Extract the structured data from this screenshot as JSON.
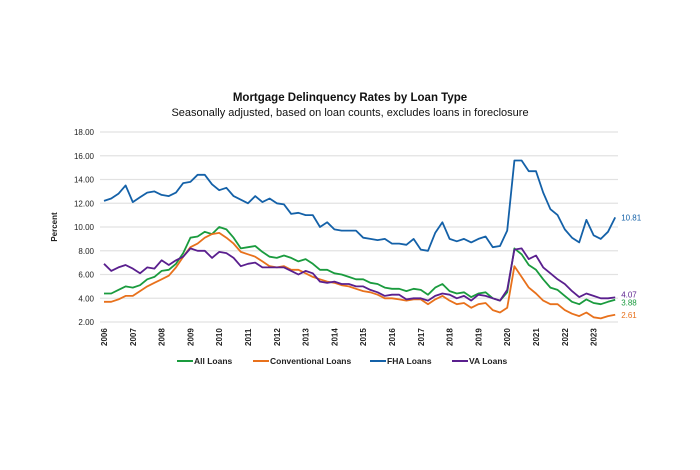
{
  "chart_data": {
    "type": "line",
    "title": "Mortgage Delinquency Rates by Loan Type",
    "subtitle": "Seasonally adjusted, based on loan counts, excludes loans in foreclosure",
    "xlabel": "",
    "ylabel": "Percent",
    "ylim": [
      2,
      18
    ],
    "yticks": [
      "2.00",
      "4.00",
      "6.00",
      "8.00",
      "10.00",
      "12.00",
      "14.00",
      "16.00",
      "18.00"
    ],
    "xticks": [
      "2006",
      "2007",
      "2008",
      "2009",
      "2010",
      "2011",
      "2012",
      "2013",
      "2014",
      "2015",
      "2016",
      "2017",
      "2018",
      "2019",
      "2020",
      "2021",
      "2022",
      "2023"
    ],
    "x_frequency": "quarterly, 2006 Q1 - 2023 Q4",
    "grid": true,
    "legend_position": "bottom",
    "series": [
      {
        "name": "All Loans",
        "color": "#1a9b3e",
        "end_label": "3.88",
        "values": [
          4.4,
          4.4,
          4.7,
          5.0,
          4.9,
          5.1,
          5.6,
          5.8,
          6.3,
          6.4,
          6.9,
          7.8,
          9.1,
          9.2,
          9.6,
          9.4,
          10.0,
          9.8,
          9.1,
          8.2,
          8.3,
          8.4,
          7.9,
          7.5,
          7.4,
          7.6,
          7.4,
          7.1,
          7.3,
          6.9,
          6.4,
          6.4,
          6.1,
          6.0,
          5.8,
          5.6,
          5.6,
          5.3,
          5.2,
          4.9,
          4.8,
          4.8,
          4.6,
          4.8,
          4.7,
          4.3,
          4.9,
          5.2,
          4.6,
          4.4,
          4.5,
          4.1,
          4.4,
          4.5,
          4.0,
          3.8,
          4.5,
          8.2,
          7.7,
          6.8,
          6.4,
          5.6,
          4.9,
          4.7,
          4.2,
          3.7,
          3.5,
          3.9,
          3.6,
          3.5,
          3.7,
          3.88
        ]
      },
      {
        "name": "Conventional Loans",
        "color": "#e8711c",
        "end_label": "2.61",
        "values": [
          3.7,
          3.7,
          3.9,
          4.2,
          4.2,
          4.6,
          5.0,
          5.3,
          5.6,
          5.9,
          6.6,
          7.5,
          8.3,
          8.6,
          9.1,
          9.4,
          9.5,
          9.1,
          8.6,
          7.9,
          7.7,
          7.5,
          7.1,
          6.7,
          6.6,
          6.7,
          6.4,
          6.4,
          6.1,
          5.8,
          5.6,
          5.4,
          5.3,
          5.1,
          5.0,
          4.8,
          4.6,
          4.5,
          4.3,
          4.0,
          4.0,
          3.9,
          3.8,
          3.9,
          3.9,
          3.5,
          3.9,
          4.2,
          3.8,
          3.5,
          3.6,
          3.2,
          3.5,
          3.6,
          3.0,
          2.8,
          3.2,
          6.7,
          5.8,
          4.9,
          4.4,
          3.8,
          3.5,
          3.5,
          3.0,
          2.7,
          2.5,
          2.8,
          2.4,
          2.3,
          2.5,
          2.61
        ]
      },
      {
        "name": "FHA Loans",
        "color": "#1461a8",
        "end_label": "10.81",
        "values": [
          12.2,
          12.4,
          12.8,
          13.5,
          12.1,
          12.5,
          12.9,
          13.0,
          12.7,
          12.6,
          12.9,
          13.7,
          13.8,
          14.4,
          14.4,
          13.6,
          13.1,
          13.3,
          12.6,
          12.3,
          12.0,
          12.6,
          12.1,
          12.4,
          12.0,
          11.9,
          11.1,
          11.2,
          11.0,
          11.0,
          10.0,
          10.4,
          9.8,
          9.7,
          9.7,
          9.7,
          9.1,
          9.0,
          8.9,
          9.0,
          8.6,
          8.6,
          8.5,
          9.0,
          8.1,
          8.0,
          9.5,
          10.4,
          9.0,
          8.8,
          9.0,
          8.7,
          9.0,
          9.2,
          8.3,
          8.4,
          9.7,
          15.6,
          15.6,
          14.7,
          14.7,
          12.9,
          11.5,
          11.0,
          9.8,
          9.1,
          8.7,
          10.6,
          9.3,
          9.0,
          9.6,
          10.81
        ]
      },
      {
        "name": "VA Loans",
        "color": "#5a1f8e",
        "end_label": "4.07",
        "values": [
          6.9,
          6.3,
          6.6,
          6.8,
          6.5,
          6.1,
          6.6,
          6.5,
          7.2,
          6.8,
          7.2,
          7.5,
          8.2,
          8.0,
          8.0,
          7.4,
          7.9,
          7.8,
          7.4,
          6.7,
          6.9,
          7.0,
          6.6,
          6.6,
          6.6,
          6.6,
          6.3,
          6.0,
          6.3,
          6.1,
          5.4,
          5.3,
          5.4,
          5.2,
          5.2,
          5.0,
          5.0,
          4.7,
          4.5,
          4.2,
          4.3,
          4.3,
          3.9,
          4.0,
          4.0,
          3.8,
          4.2,
          4.4,
          4.3,
          4.0,
          4.2,
          3.8,
          4.3,
          4.2,
          4.0,
          3.8,
          4.7,
          8.1,
          8.2,
          7.3,
          7.6,
          6.6,
          6.1,
          5.6,
          5.2,
          4.6,
          4.1,
          4.4,
          4.2,
          4.0,
          4.0,
          4.07
        ]
      }
    ]
  }
}
